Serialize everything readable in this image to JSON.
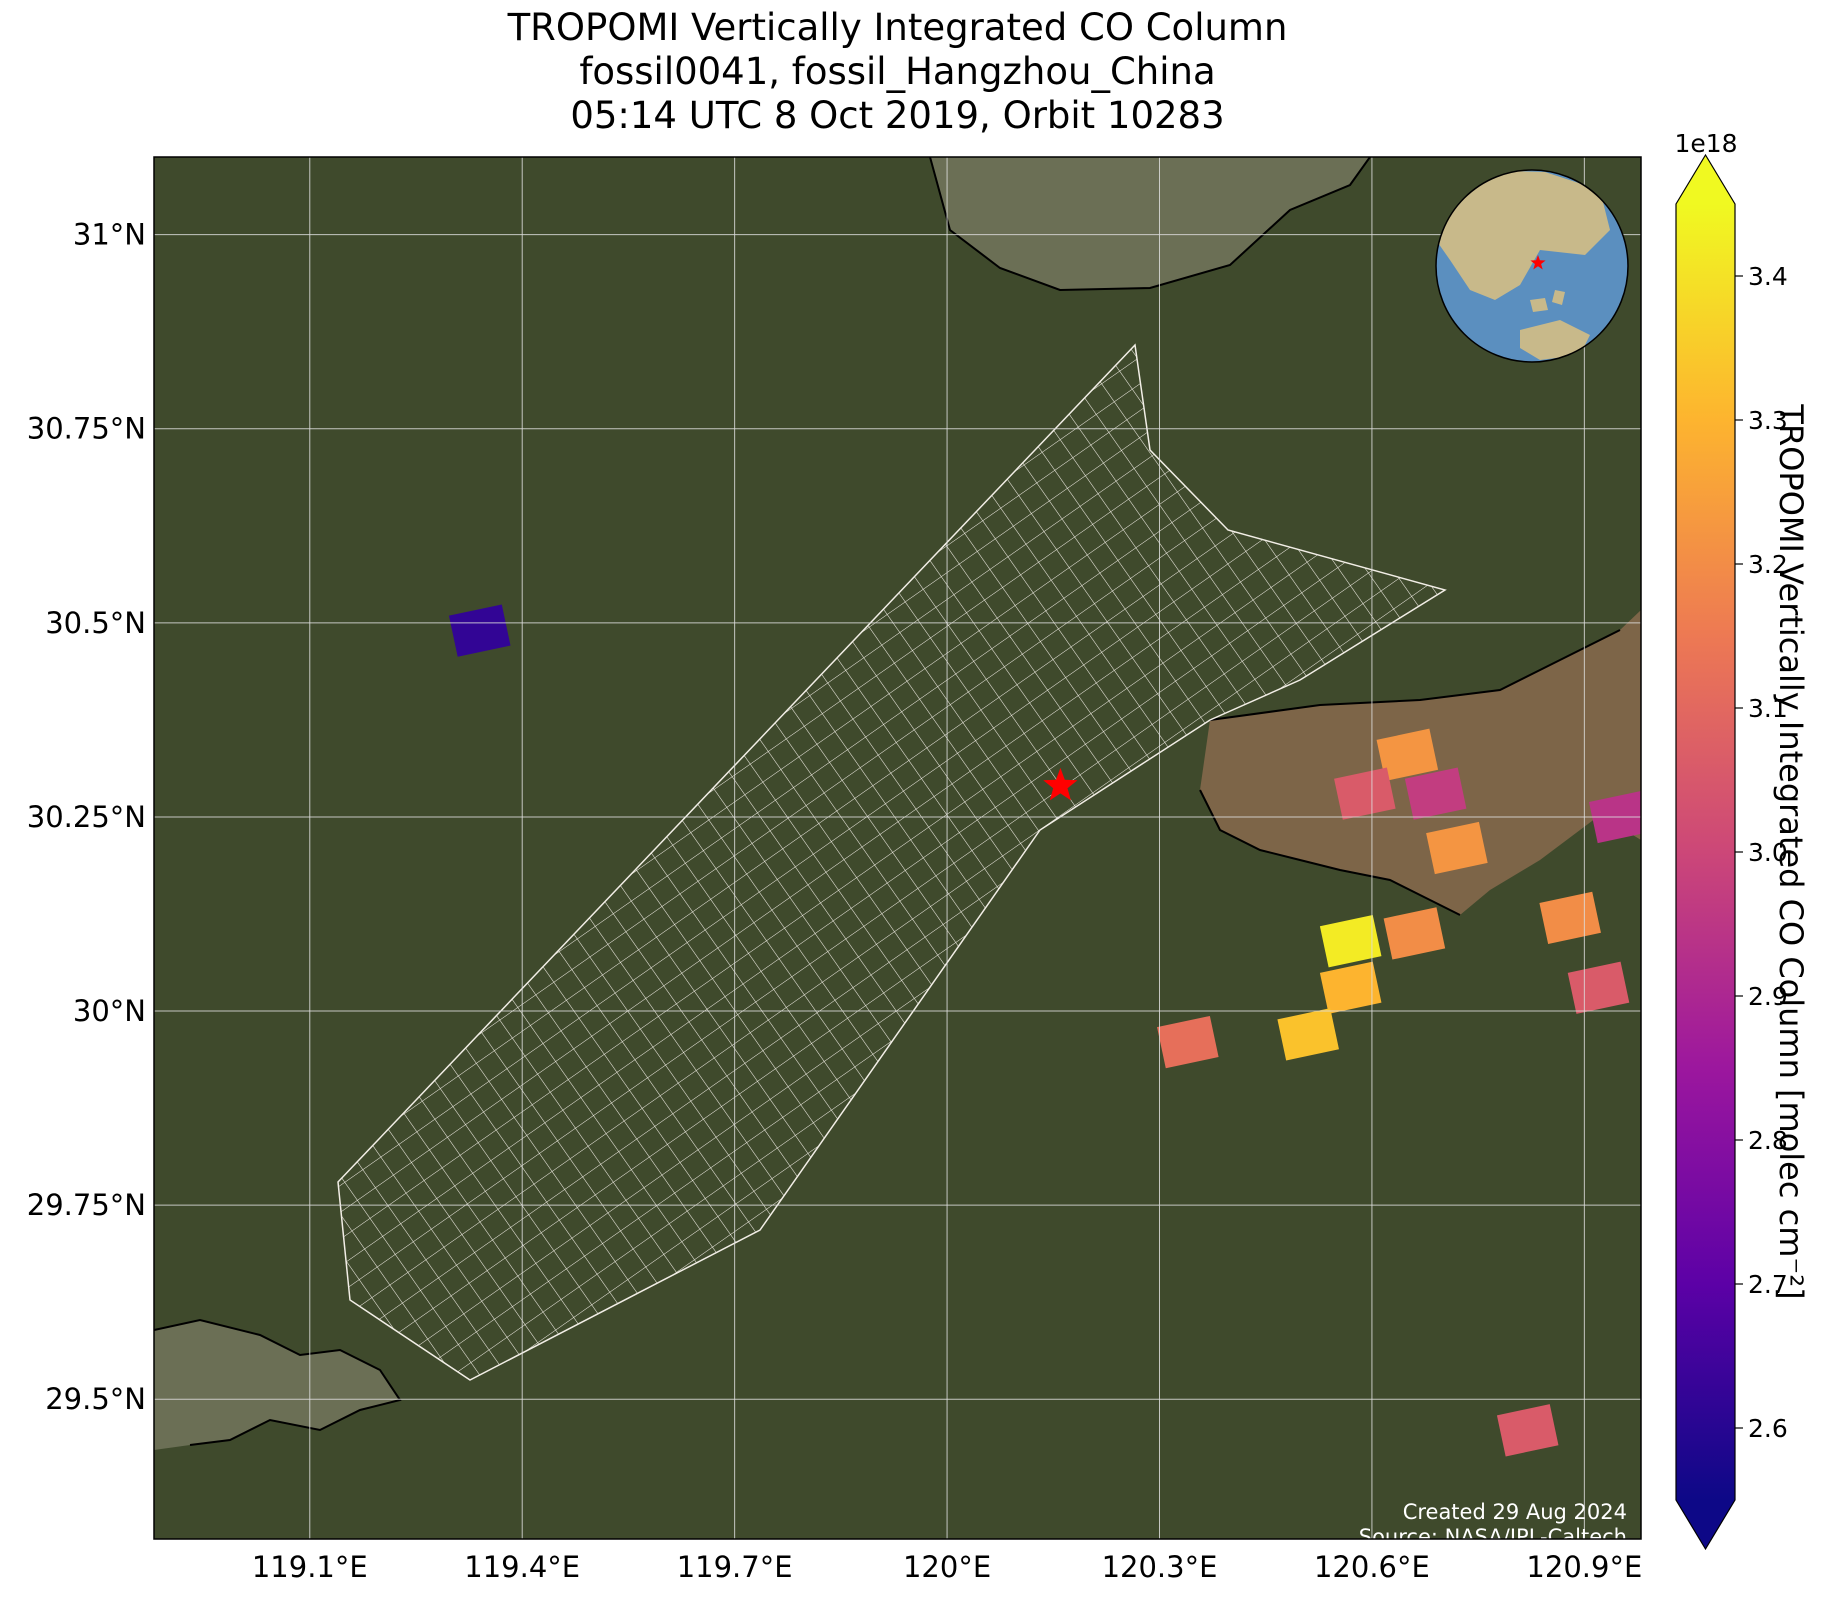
{
  "title": {
    "line1": "TROPOMI Vertically Integrated CO Column",
    "line2": "fossil0041, fossil_Hangzhou_China",
    "line3": "05:14 UTC 8 Oct 2019, Orbit 10283"
  },
  "map": {
    "lon_range": [
      118.88,
      120.98
    ],
    "lat_range": [
      29.32,
      31.1
    ],
    "lon_ticks": [
      {
        "value": 119.1,
        "label": "119.1°E"
      },
      {
        "value": 119.4,
        "label": "119.4°E"
      },
      {
        "value": 119.7,
        "label": "119.7°E"
      },
      {
        "value": 120.0,
        "label": "120°E"
      },
      {
        "value": 120.3,
        "label": "120.3°E"
      },
      {
        "value": 120.6,
        "label": "120.6°E"
      },
      {
        "value": 120.9,
        "label": "120.9°E"
      }
    ],
    "lat_ticks": [
      {
        "value": 31.0,
        "label": "31°N"
      },
      {
        "value": 30.75,
        "label": "30.75°N"
      },
      {
        "value": 30.5,
        "label": "30.5°N"
      },
      {
        "value": 30.25,
        "label": "30.25°N"
      },
      {
        "value": 30.0,
        "label": "30°N"
      },
      {
        "value": 29.75,
        "label": "29.75°N"
      },
      {
        "value": 29.5,
        "label": "29.5°N"
      }
    ],
    "target": {
      "lon": 120.16,
      "lat": 30.29,
      "marker": "star-icon",
      "color": "#ff0000"
    },
    "pixels": [
      {
        "lon": 119.34,
        "lat": 30.49,
        "value": 2.62e+18
      },
      {
        "lon": 120.65,
        "lat": 30.33,
        "value": 3.22e+18
      },
      {
        "lon": 120.69,
        "lat": 30.28,
        "value": 2.97e+18
      },
      {
        "lon": 120.59,
        "lat": 30.28,
        "value": 3.06e+18
      },
      {
        "lon": 120.95,
        "lat": 30.25,
        "value": 2.94e+18
      },
      {
        "lon": 120.72,
        "lat": 30.21,
        "value": 3.22e+18
      },
      {
        "lon": 120.88,
        "lat": 30.12,
        "value": 3.2e+18
      },
      {
        "lon": 120.57,
        "lat": 30.09,
        "value": 3.42e+18
      },
      {
        "lon": 120.66,
        "lat": 30.1,
        "value": 3.2e+18
      },
      {
        "lon": 120.92,
        "lat": 30.03,
        "value": 3.06e+18
      },
      {
        "lon": 120.57,
        "lat": 30.03,
        "value": 3.3e+18
      },
      {
        "lon": 120.51,
        "lat": 29.97,
        "value": 3.33e+18
      },
      {
        "lon": 120.34,
        "lat": 29.96,
        "value": 3.12e+18
      },
      {
        "lon": 120.82,
        "lat": 29.46,
        "value": 3.06e+18
      }
    ],
    "basemap_colors": {
      "land": "#3f4a2c",
      "lake": "#6b6f55",
      "sea": "#7d6548",
      "grid": "#dddddd",
      "coast": "#000000"
    }
  },
  "colorbar": {
    "multiplier": "1e18",
    "label": "TROPOMI Vertically Integrated CO Column [molec cm⁻²]",
    "min": 2.55,
    "max": 3.45,
    "ticks": [
      {
        "value": 2.6,
        "label": "2.6"
      },
      {
        "value": 2.7,
        "label": "2.7"
      },
      {
        "value": 2.8,
        "label": "2.8"
      },
      {
        "value": 2.9,
        "label": "2.9"
      },
      {
        "value": 3.0,
        "label": "3.0"
      },
      {
        "value": 3.1,
        "label": "3.1"
      },
      {
        "value": 3.2,
        "label": "3.2"
      },
      {
        "value": 3.3,
        "label": "3.3"
      },
      {
        "value": 3.4,
        "label": "3.4"
      }
    ],
    "colormap": [
      "#0d0887",
      "#5c01a6",
      "#9c179e",
      "#cc4778",
      "#ed7953",
      "#fdb42f",
      "#f0f921"
    ],
    "extend": "both"
  },
  "inset_globe": {
    "ocean_color": "#5b8fbf",
    "land_color": "#c8b98a",
    "marker": "star-icon",
    "marker_color": "#ff0000"
  },
  "credits": {
    "created": "Created 29 Aug 2024",
    "source": "Source: NASA/JPL-Caltech"
  }
}
